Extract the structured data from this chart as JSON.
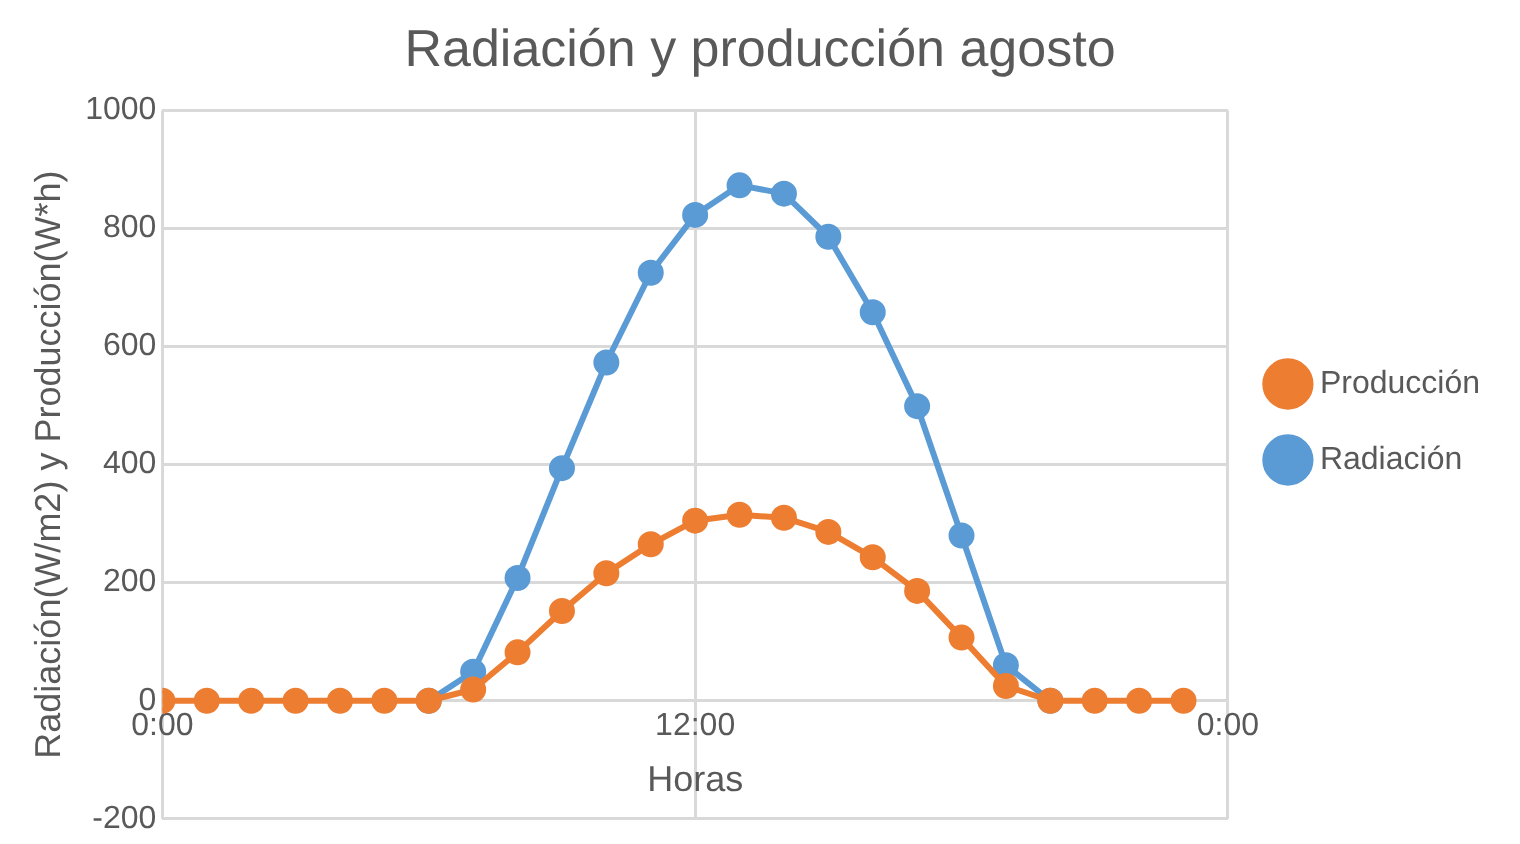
{
  "chart_data": {
    "type": "line",
    "title": "Radiación y producción agosto",
    "xlabel": "Horas",
    "ylabel": "Radiación(W/m2) y Producción(W*h)",
    "x": [
      0,
      1,
      2,
      3,
      4,
      5,
      6,
      7,
      8,
      9,
      10,
      11,
      12,
      13,
      14,
      15,
      16,
      17,
      18,
      19,
      20,
      21,
      22,
      23
    ],
    "series": [
      {
        "name": "Radiación",
        "color": "#5b9bd5",
        "values": [
          null,
          null,
          null,
          null,
          null,
          null,
          0,
          49,
          208,
          394,
          573,
          725,
          823,
          873,
          859,
          786,
          658,
          499,
          280,
          60,
          0,
          null,
          null,
          null
        ]
      },
      {
        "name": "Producción",
        "color": "#ed7d31",
        "values": [
          0,
          0,
          0,
          0,
          0,
          0,
          0,
          19,
          82,
          152,
          216,
          265,
          305,
          315,
          310,
          286,
          243,
          186,
          107,
          25,
          0,
          0,
          0,
          0
        ]
      }
    ],
    "xlim": [
      0,
      24
    ],
    "xticks": [
      {
        "value": 0,
        "label": "0:00"
      },
      {
        "value": 12,
        "label": "12:00"
      },
      {
        "value": 24,
        "label": "0:00"
      }
    ],
    "ylim": [
      -200,
      1000
    ],
    "yticks": [
      -200,
      0,
      200,
      400,
      600,
      800,
      1000
    ],
    "grid": true,
    "legend": "right",
    "marker": "circle",
    "line_style": "solid"
  }
}
